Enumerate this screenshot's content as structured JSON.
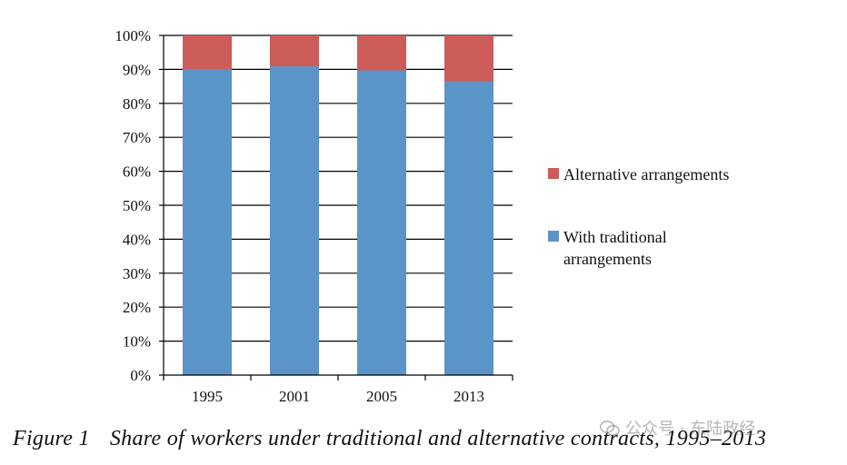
{
  "chart_data": {
    "type": "bar",
    "stacked": true,
    "categories": [
      "1995",
      "2001",
      "2005",
      "2013"
    ],
    "series": [
      {
        "name": "With traditional arrangements",
        "color": "#5B94C8",
        "values": [
          90.1,
          90.9,
          89.7,
          86.5
        ]
      },
      {
        "name": "Alternative arrangements",
        "color": "#CD5C59",
        "values": [
          9.9,
          9.1,
          10.3,
          13.5
        ]
      }
    ],
    "y_ticks": [
      "0%",
      "10%",
      "20%",
      "30%",
      "40%",
      "50%",
      "60%",
      "70%",
      "80%",
      "90%",
      "100%"
    ],
    "ylim": [
      0,
      100
    ],
    "grid": true,
    "legend": "right",
    "legend_labels": {
      "alternative": "Alternative arrangements",
      "traditional_line1": "With traditional",
      "traditional_line2": "arrangements"
    }
  },
  "caption": {
    "figure_number": "Figure 1",
    "text": "Share of workers under traditional and alternative contracts, 1995–2013"
  },
  "watermark": {
    "text": "公众号 · 东陆政经"
  }
}
